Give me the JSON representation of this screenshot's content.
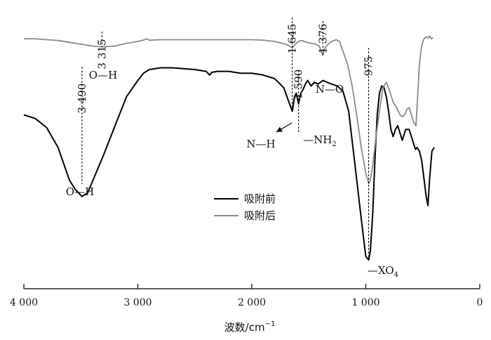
{
  "chart_data": {
    "type": "line",
    "xlabel": "波数/cm",
    "xlabel_sup": "−1",
    "x_reversed": true,
    "xlim": [
      4000,
      0
    ],
    "x_ticks": [
      4000,
      3000,
      2000,
      1000,
      0
    ],
    "x_tick_labels": [
      "4 000",
      "3 000",
      "2 000",
      "1 000",
      "0"
    ],
    "y_axis_visible": false,
    "legend_position": "center-right",
    "series": [
      {
        "name": "吸附前",
        "color": "#000000",
        "points": [
          [
            4000,
            0.8
          ],
          [
            3900,
            0.78
          ],
          [
            3800,
            0.73
          ],
          [
            3700,
            0.62
          ],
          [
            3600,
            0.44
          ],
          [
            3550,
            0.39
          ],
          [
            3490,
            0.35
          ],
          [
            3440,
            0.37
          ],
          [
            3400,
            0.43
          ],
          [
            3300,
            0.58
          ],
          [
            3200,
            0.74
          ],
          [
            3100,
            0.9
          ],
          [
            3000,
            0.99
          ],
          [
            2950,
            1.03
          ],
          [
            2900,
            1.05
          ],
          [
            2800,
            1.06
          ],
          [
            2700,
            1.06
          ],
          [
            2600,
            1.055
          ],
          [
            2500,
            1.05
          ],
          [
            2400,
            1.04
          ],
          [
            2370,
            1.02
          ],
          [
            2350,
            1.035
          ],
          [
            2300,
            1.04
          ],
          [
            2200,
            1.04
          ],
          [
            2100,
            1.03
          ],
          [
            2000,
            1.03
          ],
          [
            1900,
            1.02
          ],
          [
            1800,
            1.0
          ],
          [
            1720,
            0.95
          ],
          [
            1680,
            0.88
          ],
          [
            1645,
            0.82
          ],
          [
            1625,
            0.9
          ],
          [
            1610,
            0.92
          ],
          [
            1590,
            0.86
          ],
          [
            1570,
            0.92
          ],
          [
            1550,
            0.94
          ],
          [
            1530,
            0.97
          ],
          [
            1510,
            0.99
          ],
          [
            1480,
            0.96
          ],
          [
            1450,
            0.98
          ],
          [
            1420,
            0.97
          ],
          [
            1376,
            0.99
          ],
          [
            1340,
            0.98
          ],
          [
            1300,
            0.97
          ],
          [
            1250,
            0.96
          ],
          [
            1200,
            0.93
          ],
          [
            1150,
            0.82
          ],
          [
            1100,
            0.55
          ],
          [
            1050,
            0.28
          ],
          [
            1020,
            0.12
          ],
          [
            1000,
            0.02
          ],
          [
            975,
            0.0
          ],
          [
            960,
            0.05
          ],
          [
            940,
            0.25
          ],
          [
            920,
            0.55
          ],
          [
            900,
            0.8
          ],
          [
            880,
            0.92
          ],
          [
            860,
            0.96
          ],
          [
            840,
            0.95
          ],
          [
            820,
            0.9
          ],
          [
            800,
            0.82
          ],
          [
            780,
            0.72
          ],
          [
            760,
            0.68
          ],
          [
            740,
            0.72
          ],
          [
            720,
            0.74
          ],
          [
            700,
            0.7
          ],
          [
            680,
            0.66
          ],
          [
            650,
            0.72
          ],
          [
            620,
            0.72
          ],
          [
            600,
            0.68
          ],
          [
            580,
            0.64
          ],
          [
            565,
            0.61
          ],
          [
            550,
            0.62
          ],
          [
            530,
            0.6
          ],
          [
            510,
            0.55
          ],
          [
            490,
            0.45
          ],
          [
            470,
            0.35
          ],
          [
            455,
            0.3
          ],
          [
            440,
            0.45
          ],
          [
            420,
            0.6
          ],
          [
            400,
            0.62
          ]
        ]
      },
      {
        "name": "吸附后",
        "color": "#8a8a8a",
        "points": [
          [
            4000,
            1.22
          ],
          [
            3900,
            1.22
          ],
          [
            3800,
            1.215
          ],
          [
            3700,
            1.21
          ],
          [
            3600,
            1.2
          ],
          [
            3500,
            1.19
          ],
          [
            3400,
            1.18
          ],
          [
            3315,
            1.175
          ],
          [
            3200,
            1.18
          ],
          [
            3100,
            1.195
          ],
          [
            3000,
            1.205
          ],
          [
            2950,
            1.213
          ],
          [
            2920,
            1.22
          ],
          [
            2900,
            1.212
          ],
          [
            2800,
            1.215
          ],
          [
            2700,
            1.215
          ],
          [
            2600,
            1.215
          ],
          [
            2500,
            1.215
          ],
          [
            2400,
            1.215
          ],
          [
            2300,
            1.215
          ],
          [
            2200,
            1.215
          ],
          [
            2100,
            1.215
          ],
          [
            2000,
            1.215
          ],
          [
            1900,
            1.212
          ],
          [
            1800,
            1.205
          ],
          [
            1700,
            1.19
          ],
          [
            1670,
            1.18
          ],
          [
            1645,
            1.17
          ],
          [
            1620,
            1.19
          ],
          [
            1590,
            1.205
          ],
          [
            1560,
            1.21
          ],
          [
            1520,
            1.2
          ],
          [
            1480,
            1.195
          ],
          [
            1440,
            1.19
          ],
          [
            1410,
            1.18
          ],
          [
            1376,
            1.13
          ],
          [
            1360,
            1.17
          ],
          [
            1330,
            1.19
          ],
          [
            1300,
            1.205
          ],
          [
            1260,
            1.215
          ],
          [
            1230,
            1.205
          ],
          [
            1200,
            1.15
          ],
          [
            1160,
            1.08
          ],
          [
            1120,
            0.96
          ],
          [
            1080,
            0.8
          ],
          [
            1040,
            0.62
          ],
          [
            1000,
            0.48
          ],
          [
            975,
            0.42
          ],
          [
            960,
            0.44
          ],
          [
            940,
            0.52
          ],
          [
            910,
            0.68
          ],
          [
            880,
            0.82
          ],
          [
            850,
            0.95
          ],
          [
            820,
            0.98
          ],
          [
            790,
            0.93
          ],
          [
            760,
            0.87
          ],
          [
            730,
            0.84
          ],
          [
            700,
            0.8
          ],
          [
            680,
            0.79
          ],
          [
            660,
            0.8
          ],
          [
            640,
            0.83
          ],
          [
            620,
            0.84
          ],
          [
            600,
            0.8
          ],
          [
            580,
            0.76
          ],
          [
            560,
            0.74
          ],
          [
            545,
            0.9
          ],
          [
            530,
            1.08
          ],
          [
            510,
            1.18
          ],
          [
            490,
            1.22
          ],
          [
            470,
            1.23
          ],
          [
            450,
            1.225
          ],
          [
            440,
            1.235
          ],
          [
            425,
            1.22
          ],
          [
            410,
            1.225
          ]
        ]
      }
    ],
    "annotations": [
      {
        "series": "吸附后",
        "x": 3315,
        "wavenumber_label": "3 315",
        "group_label": "O—H",
        "group_pos": "below"
      },
      {
        "series": "吸附前",
        "x": 3490,
        "wavenumber_label": "3 490",
        "group_label": "O—H",
        "group_pos": "below"
      },
      {
        "series": "吸附前",
        "x": 1645,
        "wavenumber_label": "1 645",
        "group_label": "N—H",
        "group_pos": "arrow-left"
      },
      {
        "series": "吸附前",
        "x": 1590,
        "wavenumber_label": "1 590",
        "group_label": "—NH",
        "group_sub": "2",
        "group_pos": "below"
      },
      {
        "series": "吸附后",
        "x": 1376,
        "wavenumber_label": "1 376",
        "group_label": "N—O",
        "group_pos": "below"
      },
      {
        "series": "吸附前",
        "x": 975,
        "wavenumber_label": "975",
        "group_label": "—XO",
        "group_sub": "4",
        "group_pos": "below"
      }
    ]
  }
}
